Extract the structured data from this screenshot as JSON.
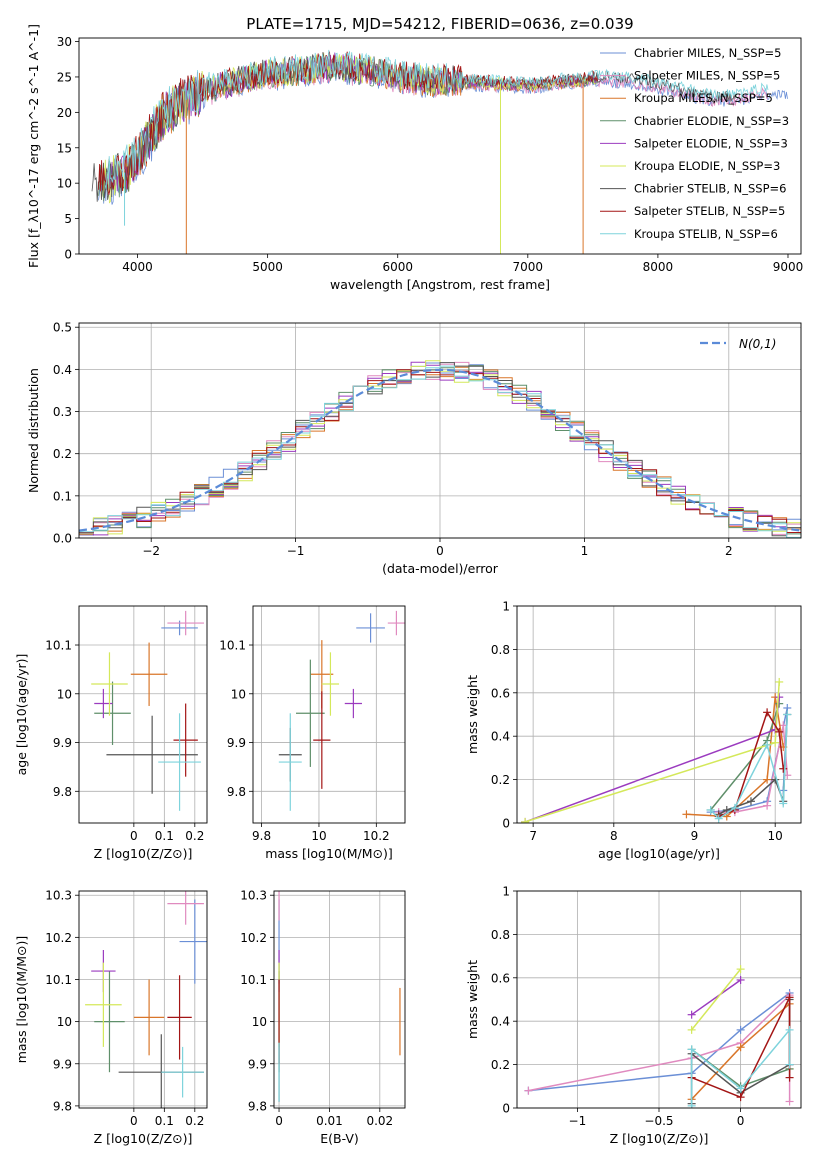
{
  "figure_title": "PLATE=1715, MJD=54212, FIBERID=0636, z=0.039",
  "series_colors": [
    "#6b8fd6",
    "#e08abf",
    "#d9762a",
    "#5f8f6a",
    "#9b3bbf",
    "#d4e85a",
    "#555555",
    "#a31515",
    "#7ed3dc"
  ],
  "chart_data": [
    {
      "id": "spectrum",
      "type": "line",
      "xlabel": "wavelength [Angstrom, rest frame]",
      "ylabel": "Flux [f_λ10^-17 erg cm^-2 s^-1 A^-1]",
      "xlim": [
        3550,
        9100
      ],
      "ylim": [
        0,
        30.5
      ],
      "xticks": [
        4000,
        5000,
        6000,
        7000,
        8000,
        9000
      ],
      "yticks": [
        0,
        5,
        10,
        15,
        20,
        25,
        30
      ],
      "grid": false,
      "legend_position": "top-right",
      "legend": [
        "Chabrier MILES, N_SSP=5",
        "Salpeter MILES, N_SSP=5",
        "Kroupa MILES, N_SSP=5",
        "Chabrier ELODIE, N_SSP=3",
        "Salpeter ELODIE, N_SSP=3",
        "Kroupa ELODIE, N_SSP=3",
        "Chabrier STELIB, N_SSP=6",
        "Salpeter STELIB, N_SSP=5",
        "Kroupa STELIB, N_SSP=6"
      ],
      "continuum": {
        "x": [
          3700,
          3800,
          3900,
          4000,
          4100,
          4200,
          4300,
          4400,
          4500,
          4700,
          4900,
          5000,
          5100,
          5300,
          5500,
          5700,
          5900,
          6000,
          6200,
          6400,
          6600,
          6800,
          7000,
          7200,
          7400,
          7600,
          7800,
          8000,
          8200,
          8400,
          8600,
          8800
        ],
        "y": [
          9.5,
          10.5,
          11.5,
          13.5,
          16.5,
          19.5,
          21,
          22,
          23,
          24,
          25,
          25.5,
          25.5,
          26,
          26.5,
          26,
          25.5,
          25,
          24.5,
          24.5,
          24.2,
          24,
          23.8,
          24.2,
          24.5,
          24.8,
          24.5,
          23.8,
          23,
          22,
          22,
          23
        ]
      },
      "end_points": [
        3700,
        9000,
        4420,
        8850,
        3900,
        7420,
        3700,
        7550,
        3780,
        7550,
        3720,
        7520,
        3650,
        8600,
        3700,
        7550,
        3750,
        8850
      ],
      "drop_lines": [
        [
          3900,
          4
        ],
        [
          4375,
          0
        ],
        [
          6790,
          0
        ],
        [
          7425,
          0
        ]
      ]
    },
    {
      "id": "residuals",
      "type": "line",
      "xlabel": "(data-model)/error",
      "ylabel": "Normed distribution",
      "xlim": [
        -2.5,
        2.5
      ],
      "ylim": [
        0,
        0.51
      ],
      "xticks": [
        -2,
        -1,
        0,
        1,
        2
      ],
      "yticks": [
        0.0,
        0.1,
        0.2,
        0.3,
        0.4,
        0.5
      ],
      "grid": true,
      "legend_position": "top-right",
      "reference_label": "N(0,1)",
      "bin_width": 0.1,
      "bin_range": [
        -2.5,
        2.5
      ]
    },
    {
      "id": "age-vs-Z",
      "type": "scatter",
      "xlabel": "Z [log10(Z/Z⊙)]",
      "ylabel": "age  [log10(age/yr)]",
      "xlim": [
        -0.18,
        0.24
      ],
      "ylim": [
        9.735,
        10.18
      ],
      "xticks": [
        0.0,
        0.1,
        0.2
      ],
      "yticks": [
        9.8,
        9.9,
        10.0,
        10.1
      ],
      "grid": true,
      "points": [
        {
          "x": 0.15,
          "y": 10.135,
          "xerr": 0.06,
          "yerr": 0.015
        },
        {
          "x": 0.17,
          "y": 10.145,
          "xerr": 0.06,
          "yerr": 0.025
        },
        {
          "x": 0.05,
          "y": 10.04,
          "xerr": 0.06,
          "yerr": 0.065
        },
        {
          "x": -0.07,
          "y": 9.96,
          "xerr": 0.06,
          "yerr": 0.065
        },
        {
          "x": -0.1,
          "y": 9.98,
          "xerr": 0.03,
          "yerr": 0.03
        },
        {
          "x": -0.08,
          "y": 10.02,
          "xerr": 0.06,
          "yerr": 0.065
        },
        {
          "x": 0.06,
          "y": 9.875,
          "xerr": 0.15,
          "yerr": 0.08
        },
        {
          "x": 0.17,
          "y": 9.905,
          "xerr": 0.04,
          "yerr": 0.075
        },
        {
          "x": 0.15,
          "y": 9.86,
          "xerr": 0.07,
          "yerr": 0.1
        }
      ]
    },
    {
      "id": "age-vs-mass",
      "type": "scatter",
      "xlabel": "mass [log10(M/M⊙)]",
      "ylabel": "",
      "xlim": [
        9.77,
        10.3
      ],
      "ylim": [
        9.735,
        10.18
      ],
      "xticks": [
        9.8,
        10.0,
        10.2
      ],
      "yticks": [
        9.8,
        9.9,
        10.0,
        10.1
      ],
      "grid": true,
      "points": [
        {
          "x": 10.18,
          "y": 10.135,
          "xerr": 0.05,
          "yerr": 0.03
        },
        {
          "x": 10.27,
          "y": 10.145,
          "xerr": 0.03,
          "yerr": 0.025
        },
        {
          "x": 10.01,
          "y": 10.04,
          "xerr": 0.04,
          "yerr": 0.07
        },
        {
          "x": 9.97,
          "y": 9.96,
          "xerr": 0.05,
          "yerr": 0.11
        },
        {
          "x": 10.12,
          "y": 9.98,
          "xerr": 0.03,
          "yerr": 0.03
        },
        {
          "x": 10.04,
          "y": 10.02,
          "xerr": 0.03,
          "yerr": 0.065
        },
        {
          "x": 9.9,
          "y": 9.875,
          "xerr": 0.04,
          "yerr": 0.055
        },
        {
          "x": 10.01,
          "y": 9.905,
          "xerr": 0.03,
          "yerr": 0.1
        },
        {
          "x": 9.9,
          "y": 9.86,
          "xerr": 0.04,
          "yerr": 0.1
        }
      ]
    },
    {
      "id": "massweight-vs-age",
      "type": "line",
      "xlabel": "age  [log10(age/yr)]",
      "ylabel": "mass weight",
      "xlim": [
        6.8,
        10.32
      ],
      "ylim": [
        0,
        1.0
      ],
      "xticks": [
        7,
        8,
        9,
        10
      ],
      "yticks": [
        0.0,
        0.2,
        0.4,
        0.6,
        0.8,
        1.0
      ],
      "grid": true,
      "series": [
        {
          "x": [
            9.2,
            9.5,
            9.9,
            10.15,
            10.1
          ],
          "y": [
            0.05,
            0.06,
            0.1,
            0.53,
            0.15
          ]
        },
        {
          "x": [
            9.3,
            9.5,
            9.9,
            10.1,
            10.15
          ],
          "y": [
            0.05,
            0.05,
            0.08,
            0.45,
            0.22
          ]
        },
        {
          "x": [
            8.9,
            9.4,
            9.9,
            10.0,
            10.1
          ],
          "y": [
            0.04,
            0.03,
            0.2,
            0.58,
            0.35
          ]
        },
        {
          "x": [
            9.2,
            9.9,
            10.05
          ],
          "y": [
            0.06,
            0.38,
            0.55
          ]
        },
        {
          "x": [
            6.9,
            10.0,
            10.05
          ],
          "y": [
            0.005,
            0.43,
            0.58
          ]
        },
        {
          "x": [
            6.9,
            10.0,
            10.05
          ],
          "y": [
            0.005,
            0.37,
            0.65
          ]
        },
        {
          "x": [
            9.3,
            9.4,
            9.7,
            10.0,
            10.1,
            10.15
          ],
          "y": [
            0.04,
            0.06,
            0.1,
            0.2,
            0.1,
            0.5
          ]
        },
        {
          "x": [
            9.3,
            9.5,
            9.9,
            10.05,
            10.1
          ],
          "y": [
            0.03,
            0.06,
            0.51,
            0.42,
            0.25
          ]
        },
        {
          "x": [
            9.2,
            9.3,
            9.5,
            9.9,
            10.1,
            10.15
          ],
          "y": [
            0.06,
            0.02,
            0.07,
            0.36,
            0.09,
            0.5
          ]
        }
      ]
    },
    {
      "id": "mass-vs-Z",
      "type": "scatter",
      "xlabel": "Z [log10(Z/Z⊙)]",
      "ylabel": "mass [log10(M/M⊙)]",
      "xlim": [
        -0.18,
        0.24
      ],
      "ylim": [
        9.795,
        10.31
      ],
      "xticks": [
        0.0,
        0.1,
        0.2
      ],
      "yticks": [
        9.8,
        9.9,
        10.0,
        10.1,
        10.2,
        10.3
      ],
      "grid": true,
      "points": [
        {
          "x": 0.2,
          "y": 10.19,
          "xerr": 0.05,
          "yerr": 0.1
        },
        {
          "x": 0.17,
          "y": 10.28,
          "xerr": 0.06,
          "yerr": 0.05
        },
        {
          "x": 0.05,
          "y": 10.01,
          "xerr": 0.05,
          "yerr": 0.09
        },
        {
          "x": -0.08,
          "y": 10.0,
          "xerr": 0.05,
          "yerr": 0.12
        },
        {
          "x": -0.1,
          "y": 10.12,
          "xerr": 0.04,
          "yerr": 0.05
        },
        {
          "x": -0.1,
          "y": 10.04,
          "xerr": 0.06,
          "yerr": 0.1
        },
        {
          "x": 0.09,
          "y": 9.88,
          "xerr": 0.14,
          "yerr": 0.09
        },
        {
          "x": 0.15,
          "y": 10.01,
          "xerr": 0.04,
          "yerr": 0.1
        },
        {
          "x": 0.16,
          "y": 9.88,
          "xerr": 0.07,
          "yerr": 0.06
        }
      ]
    },
    {
      "id": "mass-vs-EBV",
      "type": "scatter",
      "xlabel": "E(B-V)",
      "ylabel": "",
      "xlim": [
        -0.001,
        0.025
      ],
      "ylim": [
        9.795,
        10.31
      ],
      "xticks": [
        0.0,
        0.01,
        0.02
      ],
      "yticks": [
        9.8,
        9.9,
        10.0,
        10.1,
        10.2,
        10.3
      ],
      "grid": true,
      "points": [
        {
          "x": 0.0,
          "y": 10.19,
          "xerr": 0,
          "yerr": 0.1
        },
        {
          "x": 0.0,
          "y": 10.28,
          "xerr": 0,
          "yerr": 0.04
        },
        {
          "x": 0.024,
          "y": 10.0,
          "xerr": 0,
          "yerr": 0.08
        },
        {
          "x": 0.0,
          "y": 10.0,
          "xerr": 0,
          "yerr": 0.12
        },
        {
          "x": 0.0,
          "y": 10.12,
          "xerr": 0,
          "yerr": 0.05
        },
        {
          "x": 0.0,
          "y": 10.04,
          "xerr": 0,
          "yerr": 0.1
        },
        {
          "x": 0.0,
          "y": 9.88,
          "xerr": 0,
          "yerr": 0.07
        },
        {
          "x": 0.0,
          "y": 10.0,
          "xerr": 0,
          "yerr": 0.1
        },
        {
          "x": 0.0,
          "y": 9.88,
          "xerr": 0,
          "yerr": 0.07
        }
      ]
    },
    {
      "id": "massweight-vs-Z",
      "type": "line",
      "xlabel": "Z [log10(Z/Z⊙)]",
      "ylabel": "mass weight",
      "xlim": [
        -1.37,
        0.37
      ],
      "ylim": [
        0,
        1.0
      ],
      "xticks": [
        -1.0,
        -0.5,
        0.0
      ],
      "yticks": [
        0.0,
        0.2,
        0.4,
        0.6,
        0.8,
        1.0
      ],
      "grid": true,
      "series": [
        {
          "x": [
            -1.3,
            -0.3,
            0.0,
            0.3,
            0.3
          ],
          "y": [
            0.08,
            0.16,
            0.36,
            0.53,
            0.2
          ]
        },
        {
          "x": [
            -1.3,
            -0.3,
            0.0,
            0.3,
            0.3
          ],
          "y": [
            0.08,
            0.23,
            0.3,
            0.52,
            0.03
          ]
        },
        {
          "x": [
            -0.3,
            0.0,
            0.3,
            0.3
          ],
          "y": [
            0.04,
            0.28,
            0.48,
            0.18
          ]
        },
        {
          "x": [
            -0.3,
            0.0,
            0.3
          ],
          "y": [
            0.27,
            0.1,
            0.18
          ]
        },
        {
          "x": [
            -0.3,
            0.0
          ],
          "y": [
            0.43,
            0.59
          ]
        },
        {
          "x": [
            -0.3,
            0.0
          ],
          "y": [
            0.36,
            0.64
          ]
        },
        {
          "x": [
            -0.3,
            -0.3,
            0.0,
            0.3,
            0.3
          ],
          "y": [
            0.02,
            0.25,
            0.07,
            0.2,
            0.5
          ]
        },
        {
          "x": [
            -0.3,
            0.0,
            0.3,
            0.3
          ],
          "y": [
            0.14,
            0.05,
            0.51,
            0.14
          ]
        },
        {
          "x": [
            -0.3,
            -0.3,
            0.0,
            0.3,
            0.3
          ],
          "y": [
            0.01,
            0.27,
            0.09,
            0.36,
            0.2
          ]
        }
      ]
    }
  ]
}
